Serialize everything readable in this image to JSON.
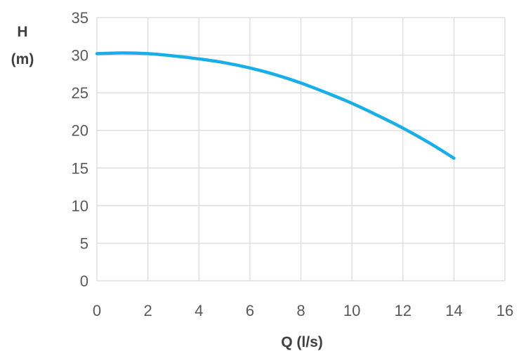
{
  "chart_data": {
    "type": "line",
    "title": "",
    "xlabel": "Q (l/s)",
    "ylabel_line1": "H",
    "ylabel_line2": "(m)",
    "xlim": [
      0,
      16
    ],
    "ylim": [
      0,
      35
    ],
    "x_ticks": [
      0,
      2,
      4,
      6,
      8,
      10,
      12,
      14,
      16
    ],
    "y_ticks": [
      0,
      5,
      10,
      15,
      20,
      25,
      30,
      35
    ],
    "grid": true,
    "legend": "none",
    "series": [
      {
        "color": "#1aaee8",
        "x": [
          0,
          1,
          2,
          3,
          4,
          5,
          6,
          7,
          8,
          9,
          10,
          11,
          12,
          13,
          14
        ],
        "y": [
          30.2,
          30.3,
          30.2,
          29.9,
          29.5,
          29.0,
          28.3,
          27.4,
          26.3,
          25.0,
          23.6,
          22.0,
          20.3,
          18.4,
          16.3
        ]
      }
    ]
  }
}
